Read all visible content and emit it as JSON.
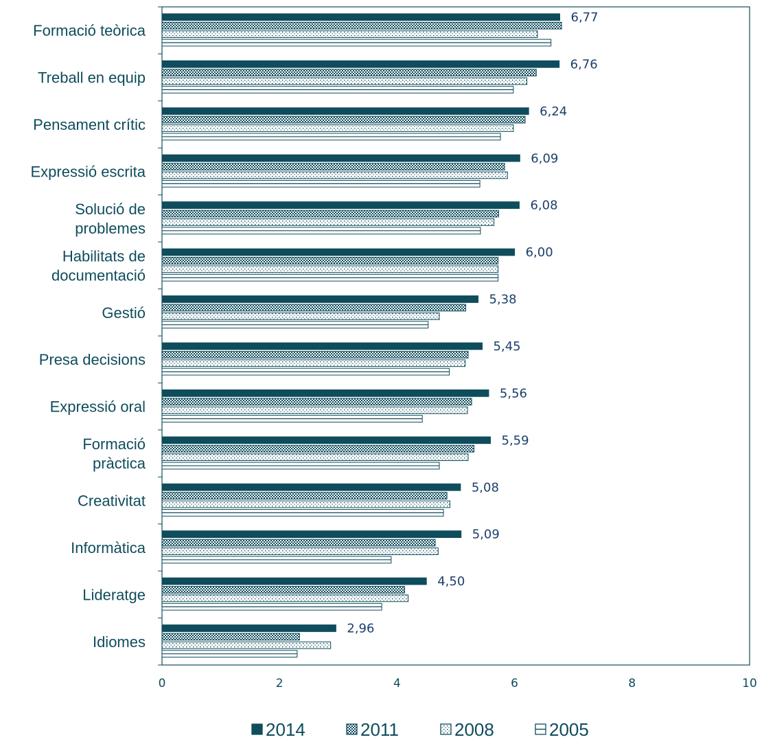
{
  "chart_data": {
    "type": "bar",
    "orientation": "horizontal",
    "categories": [
      [
        "Formació teòrica"
      ],
      [
        "Treball en equip"
      ],
      [
        "Pensament crític"
      ],
      [
        "Expressió escrita"
      ],
      [
        "Solució de",
        "problemes"
      ],
      [
        "Habilitats de",
        "documentació"
      ],
      [
        "Gestió"
      ],
      [
        "Presa decisions"
      ],
      [
        "Expressió oral"
      ],
      [
        "Formació",
        "pràctica"
      ],
      [
        "Creativitat"
      ],
      [
        "Informàtica"
      ],
      [
        "Lideratge"
      ],
      [
        "Idiomes"
      ]
    ],
    "series": [
      {
        "name": "2014",
        "values": [
          6.77,
          6.76,
          6.24,
          6.09,
          6.08,
          6.0,
          5.38,
          5.45,
          5.56,
          5.59,
          5.08,
          5.09,
          4.5,
          2.96
        ]
      },
      {
        "name": "2011",
        "values": [
          6.8,
          6.37,
          6.18,
          5.83,
          5.73,
          5.72,
          5.17,
          5.21,
          5.27,
          5.31,
          4.85,
          4.65,
          4.13,
          2.34
        ]
      },
      {
        "name": "2008",
        "values": [
          6.39,
          6.21,
          5.98,
          5.88,
          5.65,
          5.72,
          4.72,
          5.16,
          5.2,
          5.21,
          4.9,
          4.7,
          4.19,
          2.87
        ]
      },
      {
        "name": "2005",
        "values": [
          6.62,
          5.98,
          5.76,
          5.41,
          5.42,
          5.72,
          4.53,
          4.89,
          4.43,
          4.72,
          4.79,
          3.9,
          3.74,
          2.3
        ]
      }
    ],
    "data_labels": [
      "6,77",
      "6,76",
      "6,24",
      "6,09",
      "6,08",
      "6,00",
      "5,38",
      "5,45",
      "5,56",
      "5,59",
      "5,08",
      "5,09",
      "4,50",
      "2,96"
    ],
    "xticks": [
      "0",
      "2",
      "4",
      "6",
      "8",
      "10"
    ],
    "xlim": [
      0,
      10
    ],
    "legend_position": "bottom",
    "grid": false,
    "colors": {
      "axis": "#0f4c5c",
      "bar": "#0f4c5c",
      "label": "#1c3f6b"
    }
  }
}
